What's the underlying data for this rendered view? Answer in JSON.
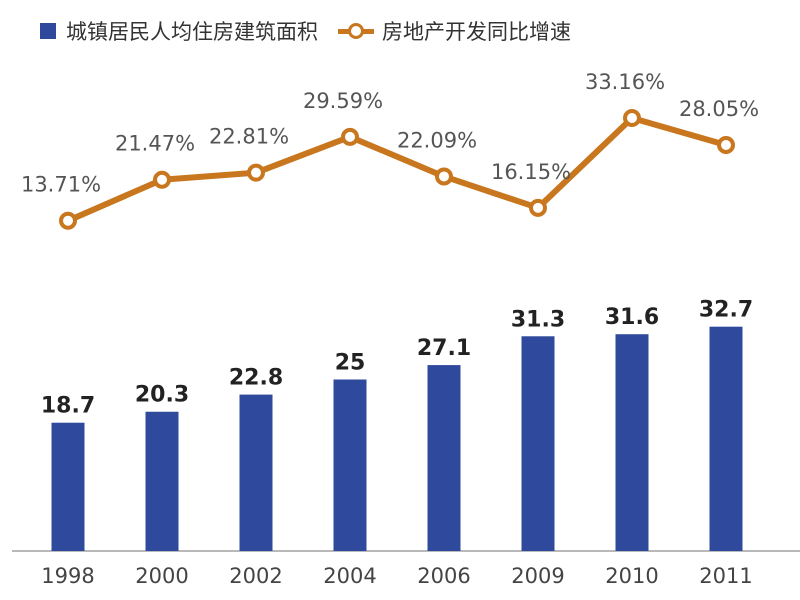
{
  "colors": {
    "bar": "#2f4a9c",
    "line": "#c8771e",
    "axis": "#b9b9b9"
  },
  "chart_data": {
    "type": "bar+line",
    "title": "",
    "xlabel": "",
    "ylabel": "",
    "grid": false,
    "legend_position": "top-left",
    "categories": [
      "1998",
      "2000",
      "2002",
      "2004",
      "2006",
      "2009",
      "2010",
      "2011"
    ],
    "series": [
      {
        "name": "城镇居民人均住房建筑面积",
        "type": "bar",
        "values": [
          18.7,
          20.3,
          22.8,
          25,
          27.1,
          31.3,
          31.6,
          32.7
        ],
        "labels": [
          "18.7",
          "20.3",
          "22.8",
          "25",
          "27.1",
          "31.3",
          "31.6",
          "32.7"
        ]
      },
      {
        "name": "房地产开发同比增速",
        "type": "line",
        "unit": "%",
        "values": [
          13.71,
          21.47,
          22.81,
          29.59,
          22.09,
          16.15,
          33.16,
          28.05
        ],
        "labels": [
          "13.71%",
          "21.47%",
          "22.81%",
          "29.59%",
          "22.09%",
          "16.15%",
          "33.16%",
          "28.05%"
        ]
      }
    ]
  }
}
